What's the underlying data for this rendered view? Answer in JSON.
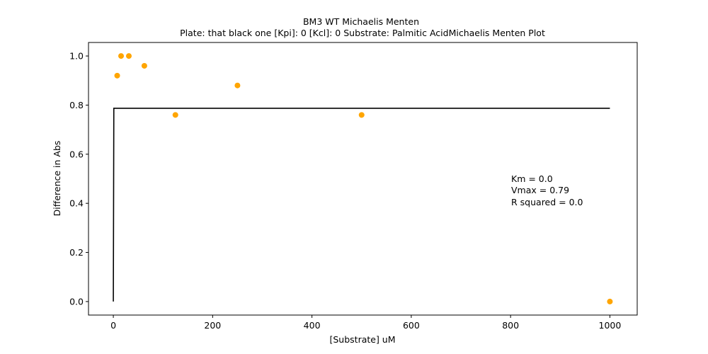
{
  "chart_data": {
    "type": "scatter",
    "title_line1": "BM3 WT Michaelis Menten",
    "title_line2": "Plate: that black one  [Kpi]: 0  [Kcl]: 0  Substrate: Palmitic AcidMichaelis Menten Plot",
    "xlabel": "[Substrate] uM",
    "ylabel": "Difference in Abs",
    "xlim": [
      -50,
      1055
    ],
    "ylim": [
      -0.055,
      1.055
    ],
    "xticks": [
      0,
      200,
      400,
      600,
      800,
      1000
    ],
    "xtick_labels": [
      "0",
      "200",
      "400",
      "600",
      "800",
      "1000"
    ],
    "yticks": [
      0.0,
      0.2,
      0.4,
      0.6,
      0.8,
      1.0
    ],
    "ytick_labels": [
      "0.0",
      "0.2",
      "0.4",
      "0.6",
      "0.8",
      "1.0"
    ],
    "grid": false,
    "series": [
      {
        "kind": "scatter",
        "color": "#ffa500",
        "x": [
          7.8,
          15.6,
          31.25,
          62.5,
          125,
          250,
          500,
          1000
        ],
        "y": [
          0.92,
          1.0,
          1.0,
          0.96,
          0.76,
          0.88,
          0.76,
          0.0
        ]
      },
      {
        "kind": "line",
        "color": "#000000",
        "x": [
          0,
          1,
          1000
        ],
        "y": [
          0.0,
          0.787,
          0.787
        ]
      }
    ],
    "annotations": {
      "km": "Km = 0.0",
      "vmax": "Vmax = 0.79",
      "r_squared": "R squared = 0.0"
    }
  }
}
